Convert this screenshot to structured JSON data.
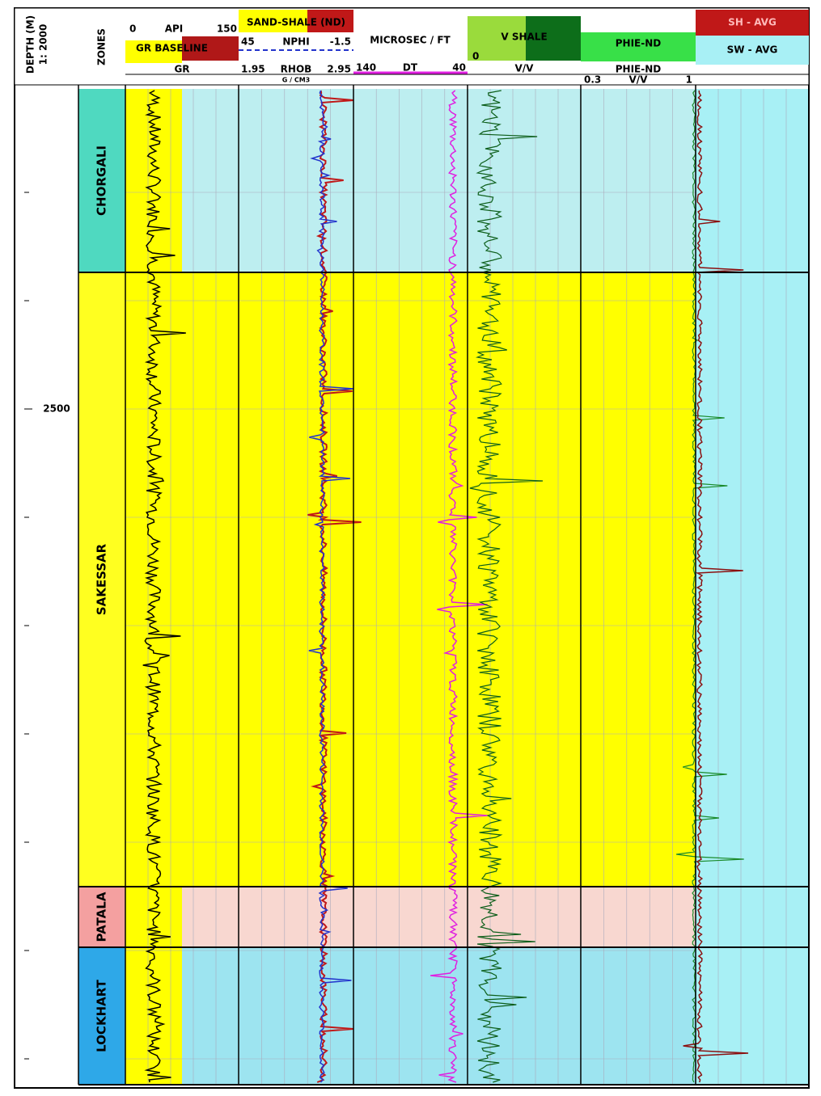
{
  "header": {
    "depth": "DEPTH (M)",
    "scale": "1: 2000",
    "zones": "ZONES",
    "gr": {
      "min": "0",
      "unit": "API",
      "max": "150",
      "baseline": "GR BASELINE",
      "name": "GR"
    },
    "nd": {
      "title": "SAND-SHALE (ND)",
      "nphi_min": "45",
      "nphi": "NPHI",
      "nphi_max": "-1.5",
      "rhob_min": "1.95",
      "rhob": "RHOB",
      "rhob_max": "2.95",
      "unit": "G / CM3"
    },
    "dt": {
      "unit": "MICROSEC / FT",
      "min": "140",
      "name": "DT",
      "max": "40"
    },
    "vsh": {
      "name": "V SHALE",
      "min": "0",
      "unit": "V/V"
    },
    "phie": {
      "name": "PHIE-ND",
      "name2": "PHIE-ND",
      "min": "0.3",
      "unit": "V/V",
      "max": "1"
    },
    "sw": {
      "sh": "SH - AVG",
      "sw": "SW - AVG"
    }
  },
  "depth_label": "2500",
  "zones": [
    "CHORGALI",
    "SAKESSAR",
    "PATALA",
    "LOCKHART"
  ]
}
